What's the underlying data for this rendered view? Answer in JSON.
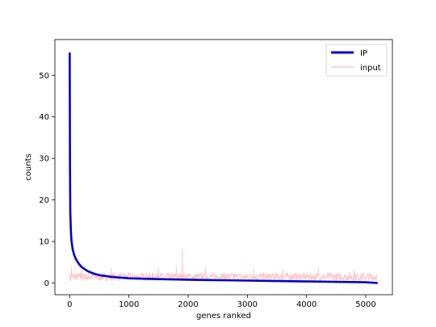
{
  "chart_data": {
    "type": "line",
    "title": "",
    "xlabel": "genes ranked",
    "ylabel": "counts",
    "xlim": [
      -250,
      5450
    ],
    "ylim": [
      -2.8,
      58.6
    ],
    "xticks": [
      0,
      1000,
      2000,
      3000,
      4000,
      5000
    ],
    "yticks": [
      0,
      10,
      20,
      30,
      40,
      50
    ],
    "grid": false,
    "legend": "top-right",
    "series": [
      {
        "name": "IP",
        "color": "#0000cc",
        "style": "thick",
        "x": [
          0,
          5,
          10,
          20,
          30,
          50,
          75,
          100,
          150,
          200,
          300,
          400,
          500,
          700,
          1000,
          1500,
          2000,
          2500,
          3000,
          3500,
          4000,
          4500,
          5000,
          5100,
          5200
        ],
        "y": [
          55.5,
          28,
          17,
          12.5,
          10.2,
          8.1,
          6.8,
          5.9,
          4.7,
          3.9,
          2.9,
          2.3,
          1.9,
          1.5,
          1.15,
          0.95,
          0.8,
          0.7,
          0.6,
          0.5,
          0.4,
          0.3,
          0.2,
          0.1,
          0.0
        ]
      },
      {
        "name": "input",
        "color": "#ffb6b6",
        "style": "thin",
        "x_range": [
          0,
          5200
        ],
        "baseline": 1.5,
        "spread": 1.0,
        "spikes": [
          {
            "x": 30,
            "y": 4.0
          },
          {
            "x": 200,
            "y": 3.8
          },
          {
            "x": 700,
            "y": 3.7
          },
          {
            "x": 1500,
            "y": 3.6
          },
          {
            "x": 1800,
            "y": 4.2
          },
          {
            "x": 1900,
            "y": 8.5
          },
          {
            "x": 2300,
            "y": 3.6
          },
          {
            "x": 3100,
            "y": 3.5
          },
          {
            "x": 3600,
            "y": 3.5
          },
          {
            "x": 4200,
            "y": 3.4
          },
          {
            "x": 4800,
            "y": 3.4
          }
        ]
      }
    ]
  }
}
